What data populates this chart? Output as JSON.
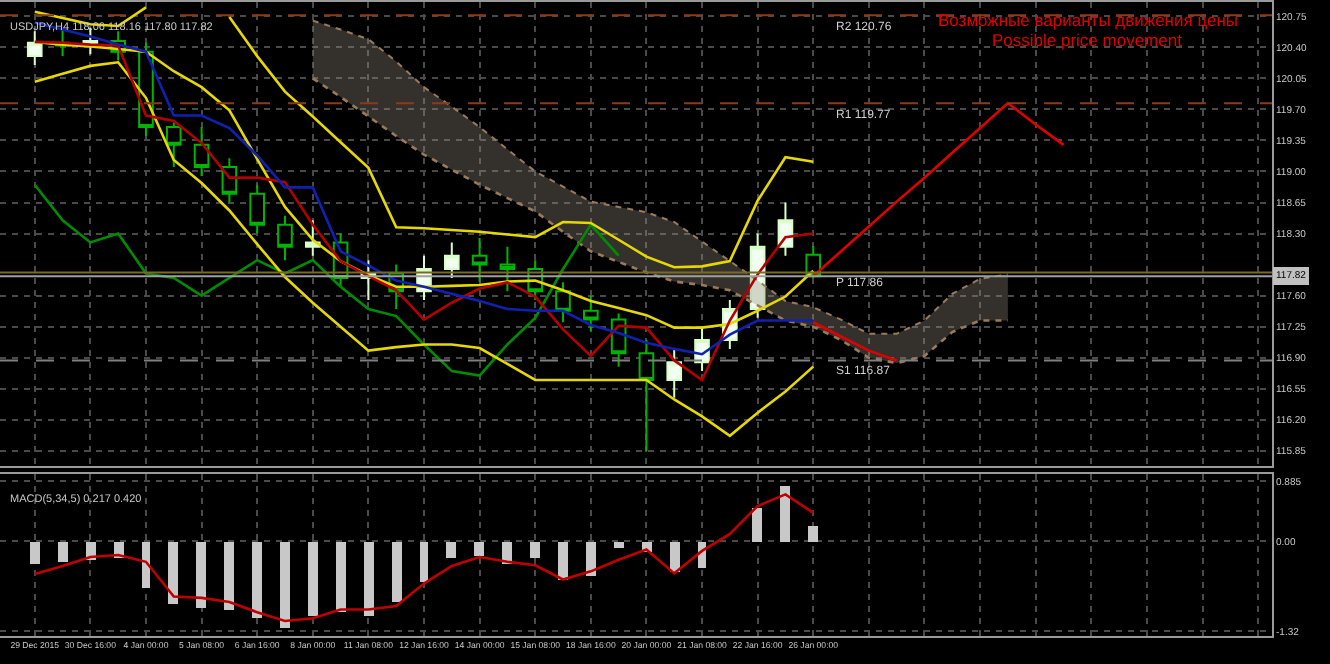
{
  "chart_data": [
    {
      "type": "candlestick",
      "title": "USDJPY,H4 118.06 118.16 117.80 117.82",
      "annotations": [
        "Возможные варианты движения цены",
        "Possible price movement",
        {
          "text": "117.82",
          "y": 117.82
        }
      ],
      "ohlc": [
        [
          120.3,
          120.58,
          120.2,
          120.45
        ],
        [
          120.45,
          120.6,
          120.3,
          120.42
        ],
        [
          120.42,
          120.62,
          120.32,
          120.47
        ],
        [
          120.47,
          120.58,
          120.25,
          120.35
        ],
        [
          120.35,
          120.45,
          119.4,
          119.5
        ],
        [
          119.5,
          119.55,
          119.05,
          119.3
        ],
        [
          119.3,
          119.5,
          118.95,
          119.05
        ],
        [
          119.05,
          119.15,
          118.65,
          118.75
        ],
        [
          118.75,
          118.85,
          118.3,
          118.4
        ],
        [
          118.4,
          118.5,
          118.0,
          118.15
        ],
        [
          118.15,
          118.45,
          118.05,
          118.2
        ],
        [
          118.2,
          118.3,
          117.7,
          117.8
        ],
        [
          117.8,
          118.0,
          117.55,
          117.85
        ],
        [
          117.85,
          117.95,
          117.45,
          117.65
        ],
        [
          117.65,
          118.05,
          117.55,
          117.9
        ],
        [
          117.9,
          118.2,
          117.8,
          118.05
        ],
        [
          118.05,
          118.25,
          117.75,
          117.95
        ],
        [
          117.95,
          118.15,
          117.65,
          117.9
        ],
        [
          117.9,
          118.0,
          117.55,
          117.65
        ],
        [
          117.65,
          117.75,
          117.3,
          117.43
        ],
        [
          117.43,
          117.6,
          117.2,
          117.33
        ],
        [
          117.33,
          117.4,
          116.8,
          116.95
        ],
        [
          116.95,
          117.1,
          115.85,
          116.65
        ],
        [
          116.65,
          117.0,
          116.45,
          116.85
        ],
        [
          116.85,
          117.25,
          116.75,
          117.1
        ],
        [
          117.1,
          117.55,
          117.0,
          117.45
        ],
        [
          117.45,
          118.3,
          117.35,
          118.15
        ],
        [
          118.15,
          118.65,
          118.05,
          118.45
        ],
        [
          118.06,
          118.16,
          117.8,
          117.82
        ],
        null,
        null,
        null,
        null,
        null,
        null,
        null,
        null,
        null,
        null,
        null,
        null,
        null,
        null,
        null,
        null
      ],
      "series": [
        {
          "type": "line",
          "color": "#9a7a5a",
          "line_style": "dotted",
          "values": [
            null,
            null,
            null,
            null,
            null,
            null,
            null,
            null,
            null,
            null,
            120.05,
            119.84,
            119.62,
            119.4,
            119.19,
            119.02,
            118.85,
            118.7,
            118.55,
            118.32,
            118.1,
            117.98,
            117.86,
            117.76,
            117.72,
            117.66,
            117.49,
            117.32,
            117.25,
            117.1,
            116.9,
            116.84,
            116.92,
            117.19,
            117.32,
            117.32,
            null,
            null,
            null,
            null,
            null,
            null,
            null,
            null,
            null
          ]
        },
        {
          "type": "area",
          "color": "#9a7a5a",
          "line_style": "dotted",
          "values": [
            null,
            null,
            null,
            null,
            null,
            null,
            null,
            null,
            null,
            null,
            120.7,
            120.6,
            120.49,
            120.24,
            119.95,
            119.73,
            119.5,
            119.25,
            119.0,
            118.83,
            118.66,
            118.6,
            118.54,
            118.43,
            118.21,
            117.99,
            117.77,
            117.54,
            117.47,
            117.33,
            117.17,
            117.17,
            117.32,
            117.62,
            117.79,
            117.84,
            null,
            null,
            null,
            null,
            null,
            null,
            null,
            null,
            null
          ]
        },
        {
          "type": "line",
          "color": "#008c00",
          "values": [
            118.85,
            118.45,
            118.2,
            118.3,
            117.85,
            117.8,
            117.6,
            117.8,
            118.0,
            117.85,
            118.0,
            117.7,
            117.45,
            117.37,
            117.05,
            116.75,
            116.7,
            117.05,
            117.35,
            117.9,
            118.4,
            118.05,
            null,
            null,
            null,
            null,
            null,
            null,
            null,
            null,
            null,
            null,
            null,
            null,
            null,
            null,
            null,
            null,
            null,
            null,
            null,
            null,
            null,
            null,
            null
          ]
        },
        {
          "type": "line",
          "color": "#e6d800",
          "values": [
            120.8,
            120.73,
            120.66,
            120.64,
            120.85,
            null,
            null,
            120.74,
            120.3,
            119.9,
            119.62,
            119.33,
            119.04,
            118.37,
            118.36,
            118.34,
            118.32,
            118.29,
            118.26,
            118.43,
            118.42,
            118.23,
            118.04,
            117.92,
            117.93,
            117.99,
            118.67,
            119.16,
            119.11,
            null,
            null,
            null,
            null,
            null,
            null,
            null,
            null,
            null,
            null,
            null,
            null,
            null,
            null,
            null,
            null
          ]
        },
        {
          "type": "line",
          "color": "#e6d800",
          "values": [
            120.46,
            120.43,
            120.41,
            120.38,
            120.35,
            120.13,
            119.95,
            119.69,
            119.14,
            118.6,
            118.23,
            117.99,
            117.83,
            117.7,
            117.7,
            117.71,
            117.72,
            117.76,
            117.77,
            117.66,
            117.54,
            117.46,
            117.38,
            117.24,
            117.24,
            117.28,
            117.43,
            117.59,
            117.88,
            null,
            null,
            null,
            null,
            null,
            null,
            null,
            null,
            null,
            null,
            null,
            null,
            null,
            null,
            null,
            null
          ]
        },
        {
          "type": "line",
          "color": "#e6d800",
          "values": [
            120.01,
            120.1,
            120.19,
            120.23,
            119.83,
            119.13,
            118.87,
            118.56,
            118.18,
            117.81,
            117.52,
            117.25,
            116.98,
            117.02,
            117.05,
            117.05,
            117.01,
            116.83,
            116.65,
            116.65,
            116.65,
            116.65,
            116.65,
            116.43,
            116.24,
            116.02,
            116.28,
            116.52,
            116.8,
            null,
            null,
            null,
            null,
            null,
            null,
            null,
            null,
            null,
            null,
            null,
            null,
            null,
            null,
            null,
            null
          ]
        },
        {
          "type": "line",
          "color": "#b40000",
          "values": [
            120.46,
            120.45,
            120.43,
            120.42,
            119.63,
            119.57,
            119.32,
            118.93,
            118.93,
            118.88,
            118.4,
            117.99,
            117.82,
            117.66,
            117.33,
            117.52,
            117.68,
            117.75,
            117.59,
            117.22,
            116.92,
            117.26,
            117.24,
            116.87,
            116.65,
            117.32,
            117.84,
            118.26,
            118.3,
            null,
            null,
            null,
            null,
            null,
            null,
            null,
            null,
            null,
            null,
            null,
            null,
            null,
            null,
            null,
            null
          ]
        },
        {
          "type": "line",
          "color": "#1020b0",
          "values": [
            120.68,
            120.6,
            120.52,
            120.43,
            120.35,
            119.63,
            119.63,
            119.49,
            119.18,
            118.82,
            118.82,
            118.1,
            117.94,
            117.77,
            117.7,
            117.62,
            117.54,
            117.45,
            117.43,
            117.43,
            117.27,
            117.18,
            117.07,
            117.0,
            116.94,
            117.16,
            117.32,
            117.32,
            117.32,
            null,
            null,
            null,
            null,
            null,
            null,
            null,
            null,
            null,
            null,
            null,
            null,
            null,
            null,
            null,
            null
          ]
        },
        {
          "type": "line",
          "color": "#e00000",
          "values": [
            null,
            null,
            null,
            null,
            null,
            null,
            null,
            null,
            null,
            null,
            null,
            null,
            null,
            null,
            null,
            null,
            null,
            null,
            null,
            null,
            null,
            null,
            null,
            null,
            null,
            null,
            null,
            null,
            117.82,
            118.1,
            118.38,
            118.66,
            118.93,
            119.21,
            119.49,
            119.77,
            119.53,
            119.3,
            null,
            null,
            null,
            null,
            null,
            null,
            null
          ]
        },
        {
          "type": "line",
          "color": "#e00000",
          "values": [
            null,
            null,
            null,
            null,
            null,
            null,
            null,
            null,
            null,
            null,
            null,
            null,
            null,
            null,
            null,
            null,
            null,
            null,
            null,
            null,
            null,
            null,
            null,
            null,
            null,
            null,
            null,
            null,
            117.3,
            117.14,
            116.98,
            116.87,
            null,
            null,
            null,
            null,
            null,
            null,
            null,
            null,
            null,
            null,
            null,
            null,
            null
          ]
        }
      ],
      "ref_lines": [
        {
          "axis": "y",
          "value": 120.76,
          "label": "R2 120.76",
          "color": "#8b3a1a",
          "line_style": "dashed"
        },
        {
          "axis": "y",
          "value": 119.77,
          "label": "R1 119.77",
          "color": "#8b3a1a",
          "line_style": "dashed"
        },
        {
          "axis": "y",
          "value": 117.86,
          "label": "P 117.86",
          "color": "#7a6a20",
          "line_style": "solid"
        },
        {
          "axis": "y",
          "value": 117.82,
          "color": "#a0a0a0",
          "line_style": "solid"
        },
        {
          "axis": "y",
          "value": 116.87,
          "label": "S1 116.87",
          "color": "#808080",
          "line_style": "dashed"
        }
      ],
      "ylim": [
        115.68,
        120.91
      ],
      "yticks": [
        120.75,
        {
          "value": 120.4,
          "label": "120.40"
        },
        120.05,
        {
          "value": 119.7,
          "label": "119.70"
        },
        119.35,
        {
          "value": 119,
          "label": "119.00"
        },
        118.65,
        {
          "value": 118.3,
          "label": "118.30"
        },
        {
          "value": 117.6,
          "label": "117.60"
        },
        117.25,
        {
          "value": 116.9,
          "label": "116.90"
        },
        116.55,
        {
          "value": 116.2,
          "label": "116.20"
        },
        115.85
      ],
      "grid": true,
      "tick_labels": "y"
    },
    {
      "type": "bar",
      "title": "MACD(5,34,5) 0.217 0.420",
      "color": "#c8c8c8",
      "categories": [
        "29 Dec 2015",
        null,
        "30 Dec 16:00",
        null,
        "4 Jan 00:00",
        null,
        "5 Jan 08:00",
        null,
        "6 Jan 16:00",
        null,
        "8 Jan 00:00",
        null,
        "11 Jan 08:00",
        null,
        "12 Jan 16:00",
        null,
        "14 Jan 00:00",
        null,
        "15 Jan 08:00",
        null,
        "18 Jan 16:00",
        null,
        "20 Jan 00:00",
        null,
        "21 Jan 08:00",
        null,
        "22 Jan 16:00",
        null,
        "26 Jan 00:00",
        null,
        null,
        null,
        null,
        null,
        null,
        null,
        null,
        null,
        null,
        null,
        null,
        null,
        null,
        null,
        null
      ],
      "values": [
        -0.32,
        -0.29,
        -0.26,
        -0.25,
        -0.69,
        -0.93,
        -0.99,
        -1.01,
        -1.14,
        -1.26,
        -1.1,
        -1.03,
        -1.1,
        -0.9,
        -0.6,
        -0.25,
        -0.22,
        -0.33,
        -0.25,
        -0.57,
        -0.5,
        -0.1,
        -0.17,
        -0.45,
        -0.38,
        0.0,
        0.5,
        0.8,
        0.22,
        null,
        null,
        null,
        null,
        null,
        null,
        null,
        null,
        null,
        null,
        null,
        null,
        null,
        null,
        null,
        null
      ],
      "series": [
        {
          "type": "line",
          "color": "#c00000",
          "values": [
            -0.48,
            -0.36,
            -0.23,
            -0.2,
            -0.3,
            -0.81,
            -0.83,
            -0.89,
            -1.04,
            -1.17,
            -1.13,
            -1.0,
            -1.0,
            -0.95,
            -0.62,
            -0.36,
            -0.23,
            -0.3,
            -0.35,
            -0.56,
            -0.44,
            -0.27,
            -0.12,
            -0.47,
            -0.14,
            0.11,
            0.52,
            0.69,
            0.42,
            null,
            null,
            null,
            null,
            null,
            null,
            null,
            null,
            null,
            null,
            null,
            null,
            null,
            null,
            null,
            null
          ]
        }
      ],
      "ylim": [
        -1.39,
        0.99
      ],
      "yticks": [
        0.885,
        {
          "value": 0,
          "label": "0.00"
        },
        -1.32
      ],
      "grid": true
    }
  ]
}
